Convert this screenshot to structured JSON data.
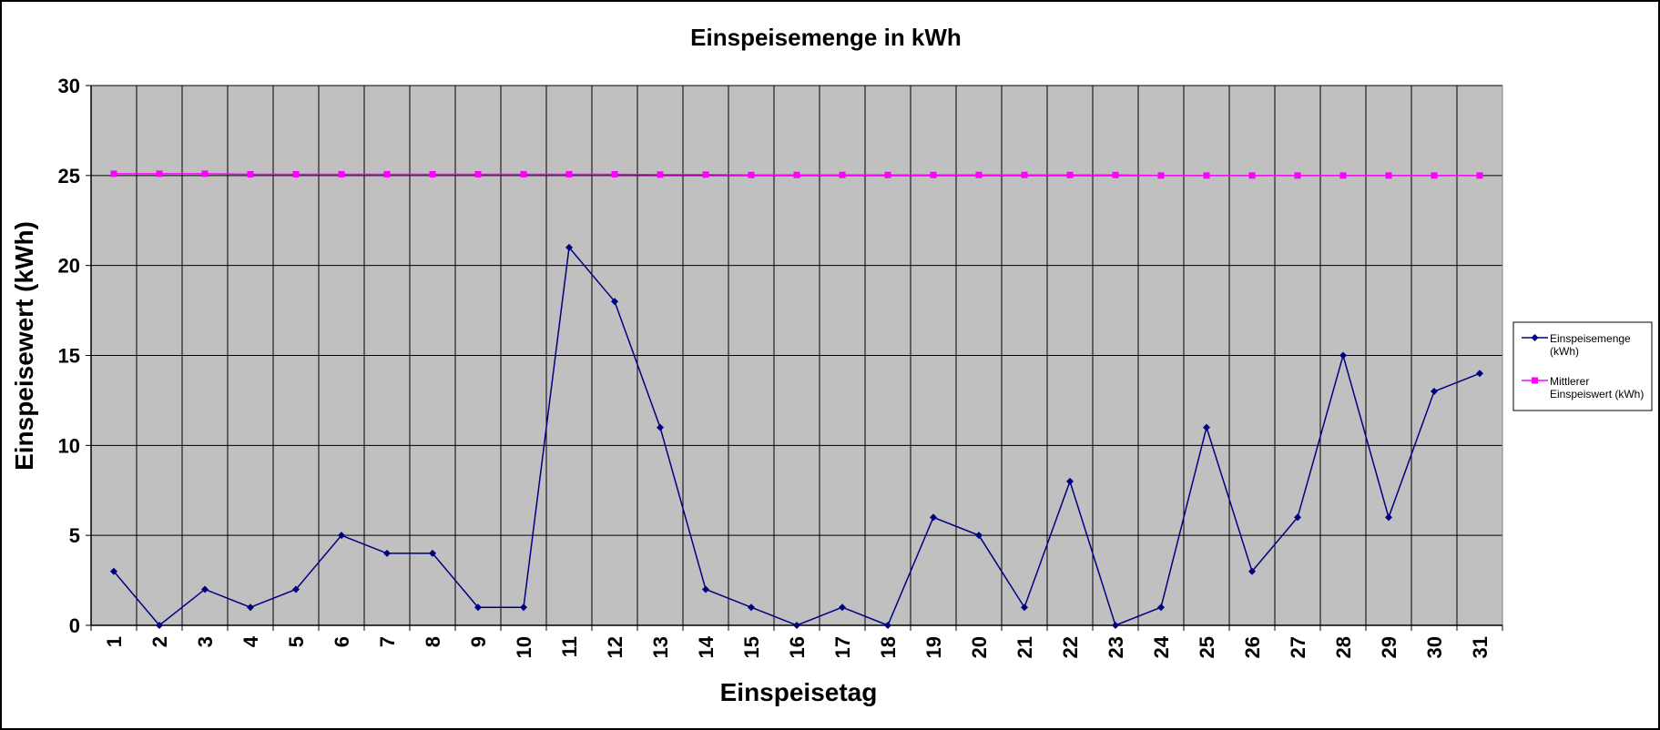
{
  "chart_data": {
    "type": "line",
    "title": "Einspeisemenge in kWh",
    "xlabel": "Einspeisetag",
    "ylabel": "Einspeisewert  (kWh)",
    "categories": [
      "1",
      "2",
      "3",
      "4",
      "5",
      "6",
      "7",
      "8",
      "9",
      "10",
      "11",
      "12",
      "13",
      "14",
      "15",
      "16",
      "17",
      "18",
      "19",
      "20",
      "21",
      "22",
      "23",
      "24",
      "25",
      "26",
      "27",
      "28",
      "29",
      "30",
      "31"
    ],
    "yticks": [
      "0",
      "5",
      "10",
      "15",
      "20",
      "25",
      "30"
    ],
    "ylim": [
      0,
      30
    ],
    "grid": true,
    "legend_position": "right",
    "plot_background": "#c0c0c0",
    "series": [
      {
        "name_lines": [
          "Einspeisemenge",
          "(kWh)"
        ],
        "color": "#000080",
        "marker": "diamond",
        "values": [
          3,
          0,
          2,
          1,
          2,
          5,
          4,
          4,
          1,
          1,
          21,
          18,
          11,
          2,
          1,
          0,
          1,
          0,
          6,
          5,
          1,
          8,
          0,
          1,
          11,
          3,
          6,
          15,
          6,
          13,
          14
        ]
      },
      {
        "name_lines": [
          "Mittlerer",
          "Einspeiswert (kWh)"
        ],
        "color": "#ff00ff",
        "marker": "square",
        "values": [
          25.1,
          25.1,
          25.1,
          25.07,
          25.07,
          25.07,
          25.07,
          25.07,
          25.07,
          25.07,
          25.07,
          25.07,
          25.05,
          25.05,
          25.03,
          25.03,
          25.03,
          25.03,
          25.03,
          25.03,
          25.03,
          25.03,
          25.03,
          25.0,
          25.0,
          25.0,
          25.0,
          25.0,
          25.0,
          25.0,
          25.0
        ]
      }
    ]
  }
}
